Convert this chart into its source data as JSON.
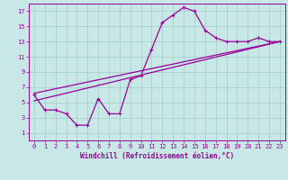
{
  "xlabel": "Windchill (Refroidissement éolien,°C)",
  "bg_color": "#c8e8e8",
  "line_color": "#990099",
  "grid_color": "#aacfcf",
  "xlim": [
    -0.5,
    23.5
  ],
  "ylim": [
    0,
    18
  ],
  "xticks": [
    0,
    1,
    2,
    3,
    4,
    5,
    6,
    7,
    8,
    9,
    10,
    11,
    12,
    13,
    14,
    15,
    16,
    17,
    18,
    19,
    20,
    21,
    22,
    23
  ],
  "yticks": [
    1,
    3,
    5,
    7,
    9,
    11,
    13,
    15,
    17
  ],
  "main_x": [
    0,
    1,
    2,
    3,
    4,
    5,
    6,
    7,
    8,
    9,
    10,
    11,
    12,
    13,
    14,
    15,
    16,
    17,
    18,
    19,
    20,
    21,
    22,
    23
  ],
  "main_y": [
    6,
    4,
    4,
    3.5,
    2,
    2,
    5.5,
    3.5,
    3.5,
    8,
    8.5,
    12,
    15.5,
    16.5,
    17.5,
    17,
    14.5,
    13.5,
    13,
    13,
    13,
    13.5,
    13,
    13
  ],
  "line1_x": [
    0,
    23
  ],
  "line1_y": [
    5.2,
    13.0
  ],
  "line2_x": [
    0,
    23
  ],
  "line2_y": [
    6.2,
    13.0
  ],
  "marker": "+",
  "markersize": 3,
  "linewidth": 0.9,
  "tick_fontsize": 5,
  "xlabel_fontsize": 5.5
}
